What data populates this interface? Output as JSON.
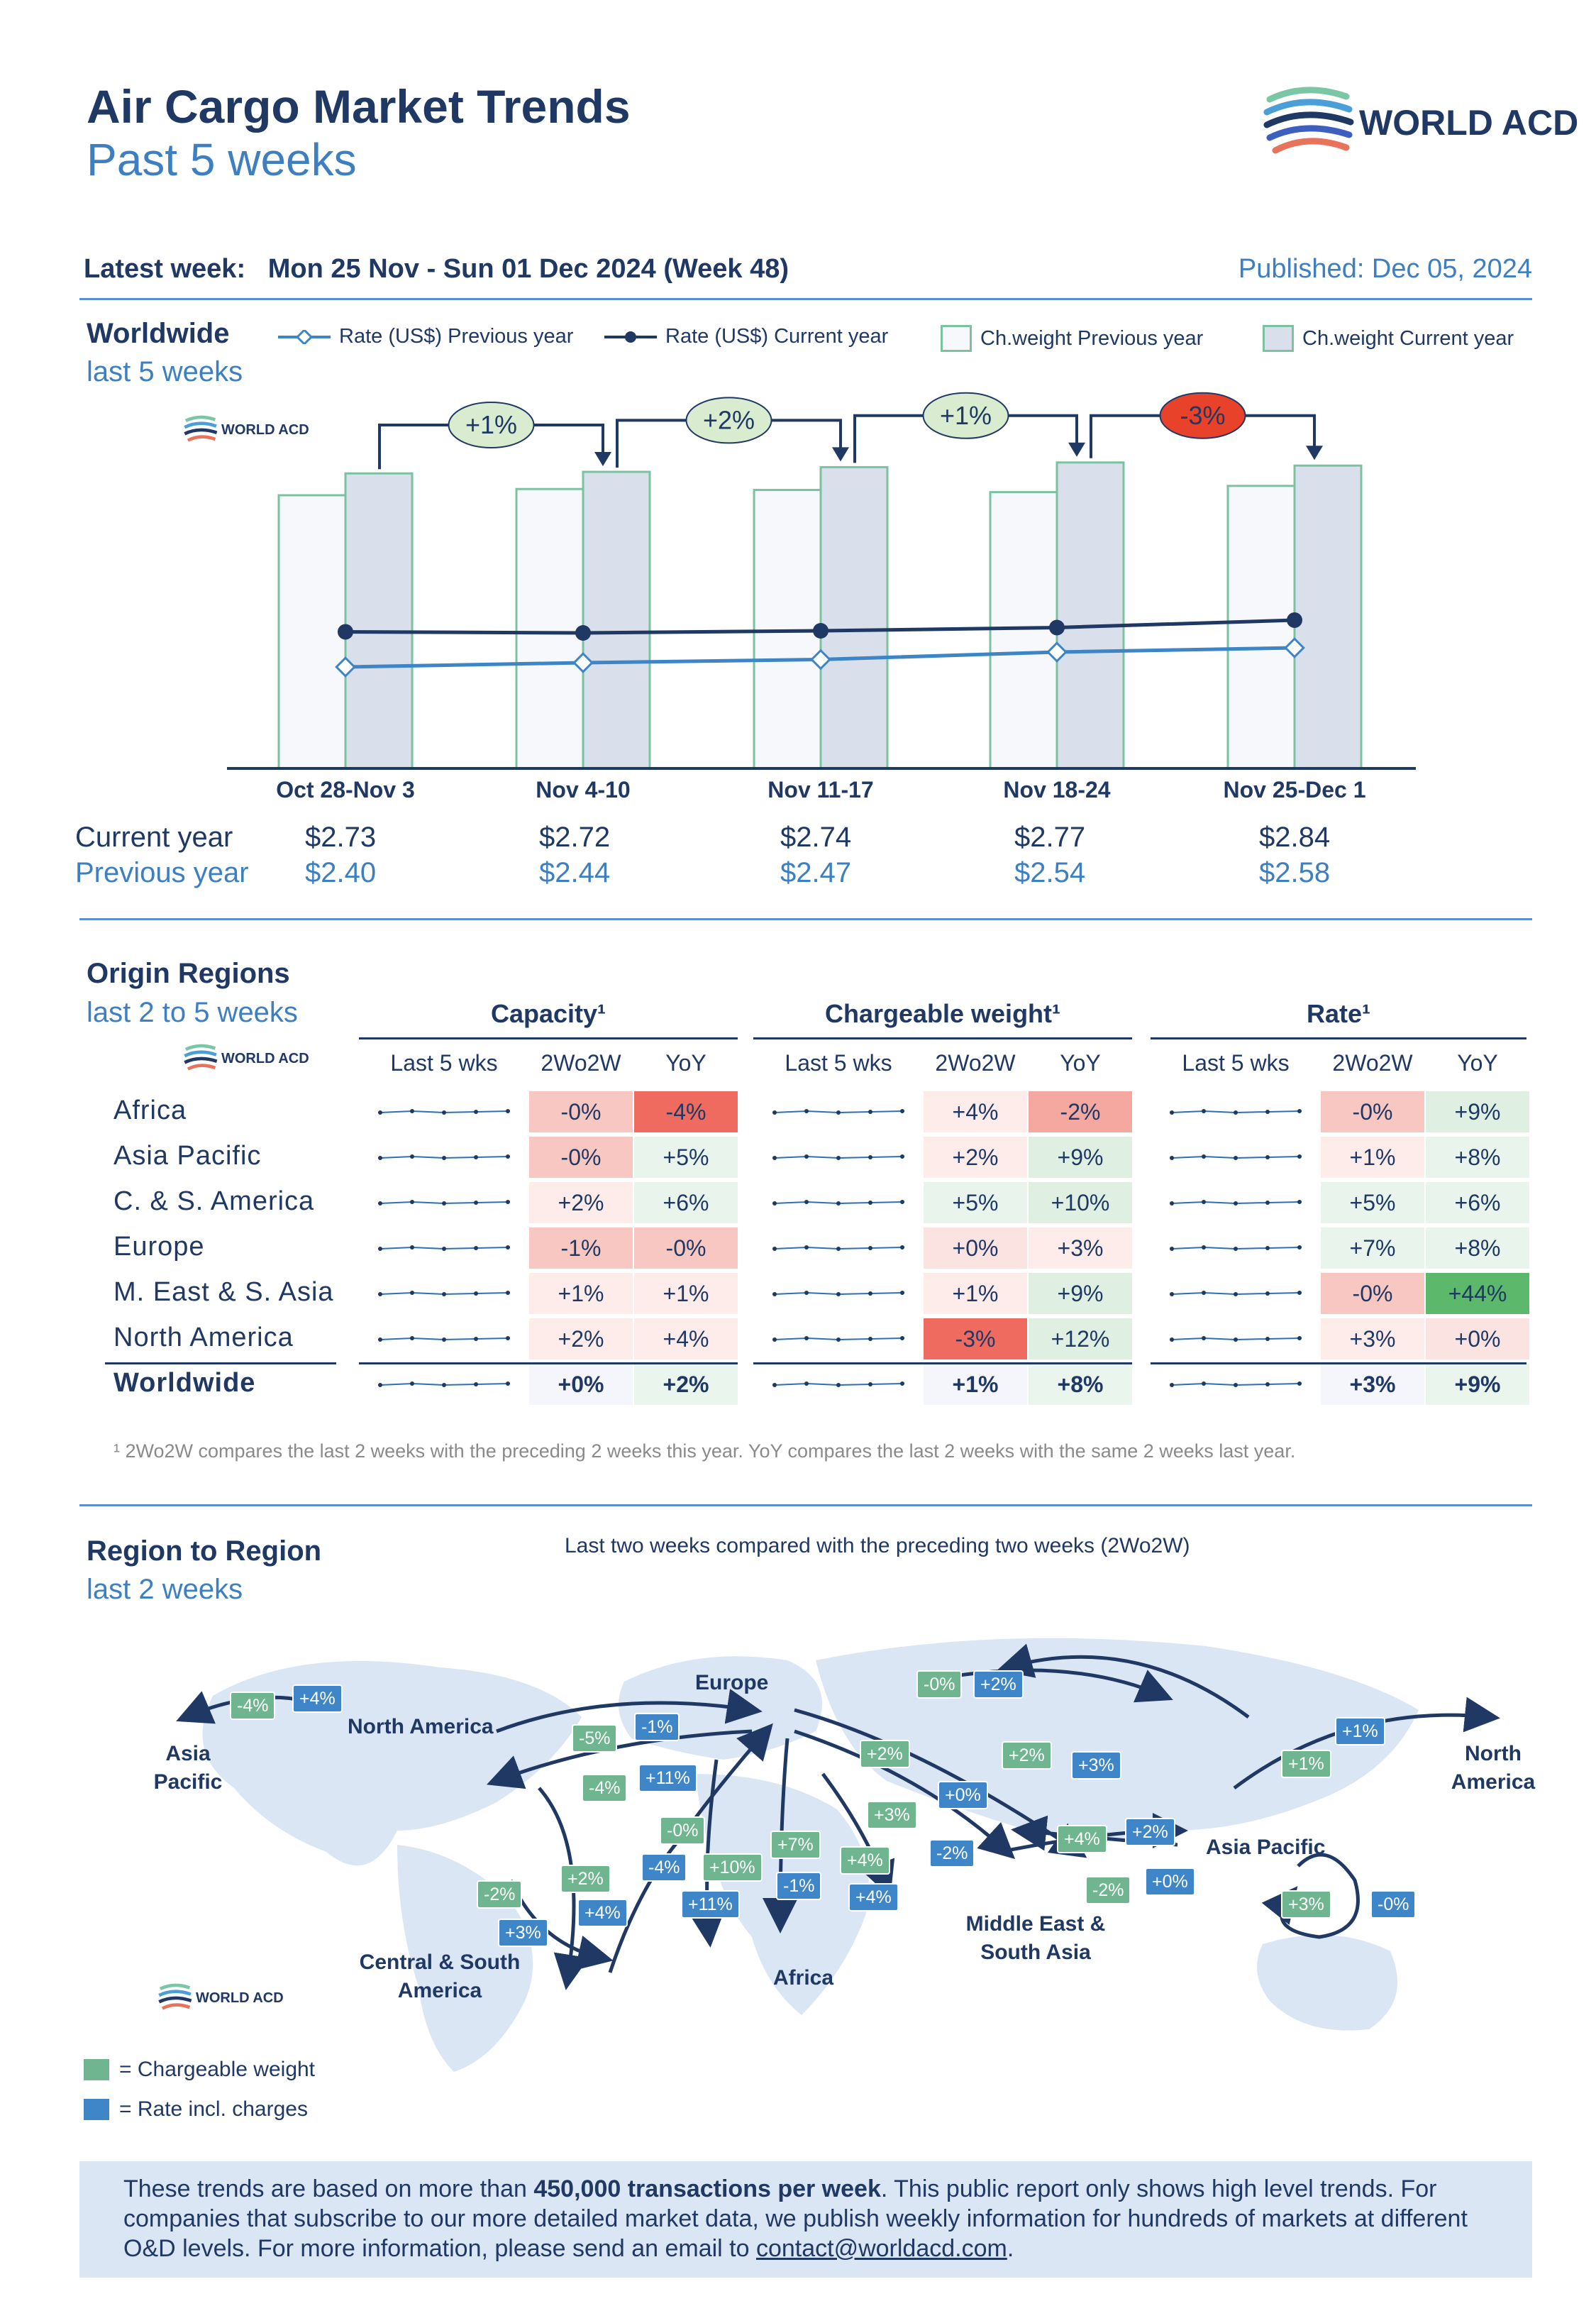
{
  "header": {
    "title": "Air Cargo Market Trends",
    "subtitle": "Past 5 weeks",
    "logo": "WORLD ACD",
    "latest_week_label": "Latest week:",
    "latest_week_value": "Mon 25 Nov - Sun 01 Dec 2024 (Week 48)",
    "published": "Published: Dec 05, 2024"
  },
  "worldwide": {
    "title": "Worldwide",
    "subtitle": "last 5 weeks",
    "legend": [
      "Rate (US$) Previous year",
      "Rate (US$) Current year",
      "Ch.weight Previous year",
      "Ch.weight Current year"
    ],
    "changes": [
      "+1%",
      "+2%",
      "+1%",
      "-3%"
    ],
    "current_year_label": "Current year",
    "previous_year_label": "Previous year"
  },
  "chart_data": {
    "type": "bar",
    "categories": [
      "Oct 28-Nov 3",
      "Nov 4-10",
      "Nov 11-17",
      "Nov 18-24",
      "Nov 25-Dec 1"
    ],
    "series": [
      {
        "name": "Ch.weight Previous year",
        "kind": "bar",
        "values": [
          0.875,
          0.895,
          0.892,
          0.885,
          0.905
        ],
        "color": "#f6f8fc"
      },
      {
        "name": "Ch.weight Current year",
        "kind": "bar",
        "values": [
          0.945,
          0.95,
          0.965,
          0.98,
          0.97
        ],
        "color": "#d9dfeb"
      },
      {
        "name": "Rate (US$) Previous year",
        "kind": "line",
        "values": [
          2.4,
          2.44,
          2.47,
          2.54,
          2.58
        ],
        "labels": [
          "$2.40",
          "$2.44",
          "$2.47",
          "$2.54",
          "$2.58"
        ],
        "color": "#3d85c6"
      },
      {
        "name": "Rate (US$) Current year",
        "kind": "line",
        "values": [
          2.73,
          2.72,
          2.74,
          2.77,
          2.84
        ],
        "labels": [
          "$2.73",
          "$2.72",
          "$2.74",
          "$2.77",
          "$2.84"
        ],
        "color": "#1f3864"
      }
    ],
    "week_changes": [
      "+1%",
      "+2%",
      "+1%",
      "-3%"
    ]
  },
  "origin": {
    "title": "Origin Regions",
    "subtitle": "last 2 to 5 weeks",
    "groups": [
      "Capacity¹",
      "Chargeable weight¹",
      "Rate¹"
    ],
    "cols": [
      "Last 5 wks",
      "2Wo2W",
      "YoY"
    ],
    "rows": [
      {
        "name": "Africa",
        "cap": [
          "-0%",
          "-4%"
        ],
        "cw": [
          "+4%",
          "-2%"
        ],
        "rate": [
          "-0%",
          "+9%"
        ]
      },
      {
        "name": "Asia Pacific",
        "cap": [
          "-0%",
          "+5%"
        ],
        "cw": [
          "+2%",
          "+9%"
        ],
        "rate": [
          "+1%",
          "+8%"
        ]
      },
      {
        "name": "C. & S. America",
        "cap": [
          "+2%",
          "+6%"
        ],
        "cw": [
          "+5%",
          "+10%"
        ],
        "rate": [
          "+5%",
          "+6%"
        ]
      },
      {
        "name": "Europe",
        "cap": [
          "-1%",
          "-0%"
        ],
        "cw": [
          "+0%",
          "+3%"
        ],
        "rate": [
          "+7%",
          "+8%"
        ]
      },
      {
        "name": "M. East & S. Asia",
        "cap": [
          "+1%",
          "+1%"
        ],
        "cw": [
          "+1%",
          "+9%"
        ],
        "rate": [
          "-0%",
          "+44%"
        ]
      },
      {
        "name": "North America",
        "cap": [
          "+2%",
          "+4%"
        ],
        "cw": [
          "-3%",
          "+12%"
        ],
        "rate": [
          "+3%",
          "+0%"
        ]
      },
      {
        "name": "Worldwide",
        "cap": [
          "+0%",
          "+2%"
        ],
        "cw": [
          "+1%",
          "+8%"
        ],
        "rate": [
          "+3%",
          "+9%"
        ]
      }
    ],
    "footnote": "¹ 2Wo2W compares the last 2 weeks with the preceding 2 weeks this year. YoY compares the last 2 weeks with the same 2 weeks last year."
  },
  "region": {
    "title": "Region to Region",
    "subtitle": "last 2 weeks",
    "map_title": "Last two weeks compared with the preceding two weeks (2Wo2W)",
    "regions": [
      "Europe",
      "North America",
      "Asia Pacific",
      "Central & South America",
      "Africa",
      "Middle East & South Asia",
      "Asia Pacific",
      "North America"
    ],
    "legend_cw": "= Chargeable weight",
    "legend_rate": "= Rate incl. charges",
    "tags": [
      {
        "v": "-4%",
        "c": "g"
      },
      {
        "v": "+4%",
        "c": "b"
      },
      {
        "v": "-5%",
        "c": "g"
      },
      {
        "v": "-1%",
        "c": "b"
      },
      {
        "v": "-4%",
        "c": "g"
      },
      {
        "v": "+11%",
        "c": "b"
      },
      {
        "v": "-0%",
        "c": "g"
      },
      {
        "v": "+2%",
        "c": "b"
      },
      {
        "v": "+2%",
        "c": "g"
      },
      {
        "v": "+3%",
        "c": "b"
      },
      {
        "v": "+2%",
        "c": "g"
      },
      {
        "v": "+0%",
        "c": "b"
      },
      {
        "v": "+3%",
        "c": "g"
      },
      {
        "v": "-2%",
        "c": "b"
      },
      {
        "v": "+4%",
        "c": "g"
      },
      {
        "v": "+2%",
        "c": "b"
      },
      {
        "v": "-2%",
        "c": "g"
      },
      {
        "v": "+0%",
        "c": "b"
      },
      {
        "v": "+1%",
        "c": "g"
      },
      {
        "v": "+1%",
        "c": "b"
      },
      {
        "v": "+3%",
        "c": "g"
      },
      {
        "v": "-0%",
        "c": "b"
      },
      {
        "v": "-0%",
        "c": "g"
      },
      {
        "v": "-4%",
        "c": "b"
      },
      {
        "v": "+10%",
        "c": "g"
      },
      {
        "v": "+11%",
        "c": "b"
      },
      {
        "v": "+7%",
        "c": "g"
      },
      {
        "v": "-1%",
        "c": "b"
      },
      {
        "v": "+4%",
        "c": "g"
      },
      {
        "v": "+4%",
        "c": "b"
      },
      {
        "v": "-2%",
        "c": "g"
      },
      {
        "v": "+3%",
        "c": "b"
      },
      {
        "v": "+2%",
        "c": "g"
      },
      {
        "v": "+4%",
        "c": "b"
      }
    ]
  },
  "bottom": {
    "text_1": "These trends are based on more than ",
    "text_bold": "450,000 transactions per week",
    "text_2": ". This public report only shows high level trends. For companies that subscribe to our more detailed market data, we publish weekly information for hundreds of markets at different O&D levels. For more information, please send an email to ",
    "email": "contact@worldacd.com",
    "text_3": "."
  }
}
